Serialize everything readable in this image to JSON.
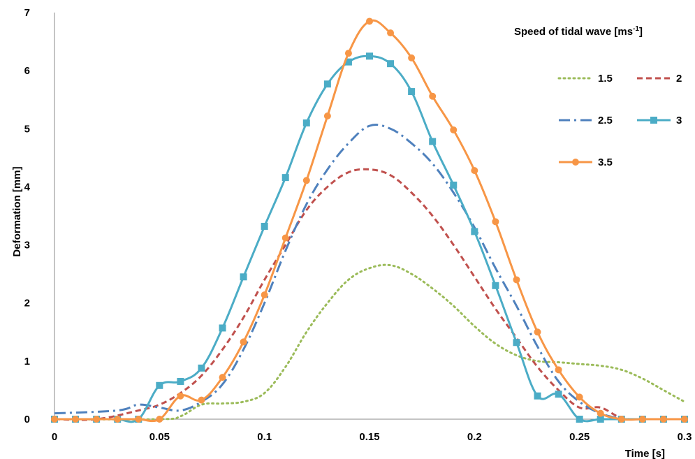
{
  "chart_data": {
    "type": "line",
    "xlabel": "Time [s]",
    "ylabel": "Deformation [mm]",
    "xlim": [
      0,
      0.3
    ],
    "ylim": [
      0,
      7
    ],
    "x_ticks": [
      "0",
      "0.05",
      "0.1",
      "0.15",
      "0.2",
      "0.25",
      "0.3"
    ],
    "y_ticks": [
      "0",
      "1",
      "2",
      "3",
      "4",
      "5",
      "6",
      "7"
    ],
    "grid": false,
    "legend": {
      "title_main": "Speed of tidal wave [ms",
      "title_sup": "-1",
      "title_end": "]",
      "placement": "top-right"
    },
    "series": [
      {
        "name": "1.5",
        "color": "#9BBB59",
        "style": "dotted",
        "marker": "none",
        "x": [
          0,
          0.05,
          0.06,
          0.07,
          0.08,
          0.09,
          0.1,
          0.11,
          0.12,
          0.13,
          0.14,
          0.15,
          0.16,
          0.17,
          0.18,
          0.19,
          0.2,
          0.21,
          0.22,
          0.23,
          0.24,
          0.25,
          0.26,
          0.27,
          0.28,
          0.29,
          0.3
        ],
        "y": [
          0,
          0,
          0.05,
          0.25,
          0.27,
          0.3,
          0.45,
          0.9,
          1.5,
          2.0,
          2.4,
          2.6,
          2.65,
          2.5,
          2.25,
          1.95,
          1.6,
          1.3,
          1.1,
          1.0,
          0.98,
          0.95,
          0.92,
          0.85,
          0.7,
          0.5,
          0.3
        ]
      },
      {
        "name": "2",
        "color": "#C0504D",
        "style": "dashed",
        "marker": "none",
        "x": [
          0,
          0.02,
          0.04,
          0.05,
          0.06,
          0.07,
          0.08,
          0.09,
          0.1,
          0.11,
          0.12,
          0.13,
          0.14,
          0.15,
          0.16,
          0.17,
          0.18,
          0.19,
          0.2,
          0.21,
          0.22,
          0.23,
          0.24,
          0.25,
          0.26,
          0.27,
          0.28
        ],
        "y": [
          0,
          0,
          0.15,
          0.25,
          0.45,
          0.75,
          1.2,
          1.75,
          2.4,
          3.0,
          3.6,
          4.0,
          4.25,
          4.3,
          4.2,
          3.9,
          3.5,
          3.0,
          2.45,
          1.9,
          1.4,
          0.9,
          0.5,
          0.2,
          0.2,
          0.02,
          0
        ]
      },
      {
        "name": "2.5",
        "color": "#4F81BD",
        "style": "dashdot",
        "marker": "none",
        "x": [
          0,
          0.03,
          0.04,
          0.05,
          0.06,
          0.07,
          0.08,
          0.09,
          0.1,
          0.11,
          0.12,
          0.13,
          0.14,
          0.15,
          0.16,
          0.17,
          0.18,
          0.19,
          0.2,
          0.21,
          0.22,
          0.23,
          0.24,
          0.25,
          0.26,
          0.27
        ],
        "y": [
          0.1,
          0.15,
          0.25,
          0.2,
          0.15,
          0.3,
          0.6,
          1.2,
          2.0,
          2.9,
          3.7,
          4.3,
          4.75,
          5.05,
          5.0,
          4.75,
          4.4,
          3.9,
          3.3,
          2.6,
          1.95,
          1.25,
          0.65,
          0.3,
          0.1,
          0
        ]
      },
      {
        "name": "3",
        "color": "#4BACC6",
        "style": "solid",
        "marker": "square",
        "x": [
          0,
          0.01,
          0.02,
          0.03,
          0.04,
          0.05,
          0.06,
          0.07,
          0.08,
          0.09,
          0.1,
          0.11,
          0.12,
          0.13,
          0.14,
          0.15,
          0.16,
          0.17,
          0.18,
          0.19,
          0.2,
          0.21,
          0.22,
          0.23,
          0.24,
          0.25,
          0.26,
          0.27,
          0.28,
          0.29,
          0.3
        ],
        "y": [
          0,
          0,
          0,
          0,
          0,
          0.58,
          0.65,
          0.88,
          1.57,
          2.45,
          3.32,
          4.16,
          5.1,
          5.77,
          6.15,
          6.25,
          6.12,
          5.64,
          4.78,
          4.03,
          3.23,
          2.3,
          1.32,
          0.4,
          0.43,
          0,
          0,
          0,
          0,
          0,
          0
        ]
      },
      {
        "name": "3.5",
        "color": "#F79646",
        "style": "solid",
        "marker": "circle",
        "x": [
          0,
          0.01,
          0.02,
          0.03,
          0.04,
          0.05,
          0.06,
          0.07,
          0.08,
          0.09,
          0.1,
          0.11,
          0.12,
          0.13,
          0.14,
          0.15,
          0.16,
          0.17,
          0.18,
          0.19,
          0.2,
          0.21,
          0.22,
          0.23,
          0.24,
          0.25,
          0.26,
          0.27,
          0.28,
          0.29,
          0.3
        ],
        "y": [
          0,
          0,
          0,
          0,
          0,
          0,
          0.4,
          0.33,
          0.72,
          1.33,
          2.14,
          3.12,
          4.11,
          5.22,
          6.3,
          6.85,
          6.65,
          6.22,
          5.56,
          4.98,
          4.28,
          3.4,
          2.4,
          1.5,
          0.85,
          0.38,
          0.1,
          0,
          0,
          0,
          0
        ]
      }
    ]
  }
}
